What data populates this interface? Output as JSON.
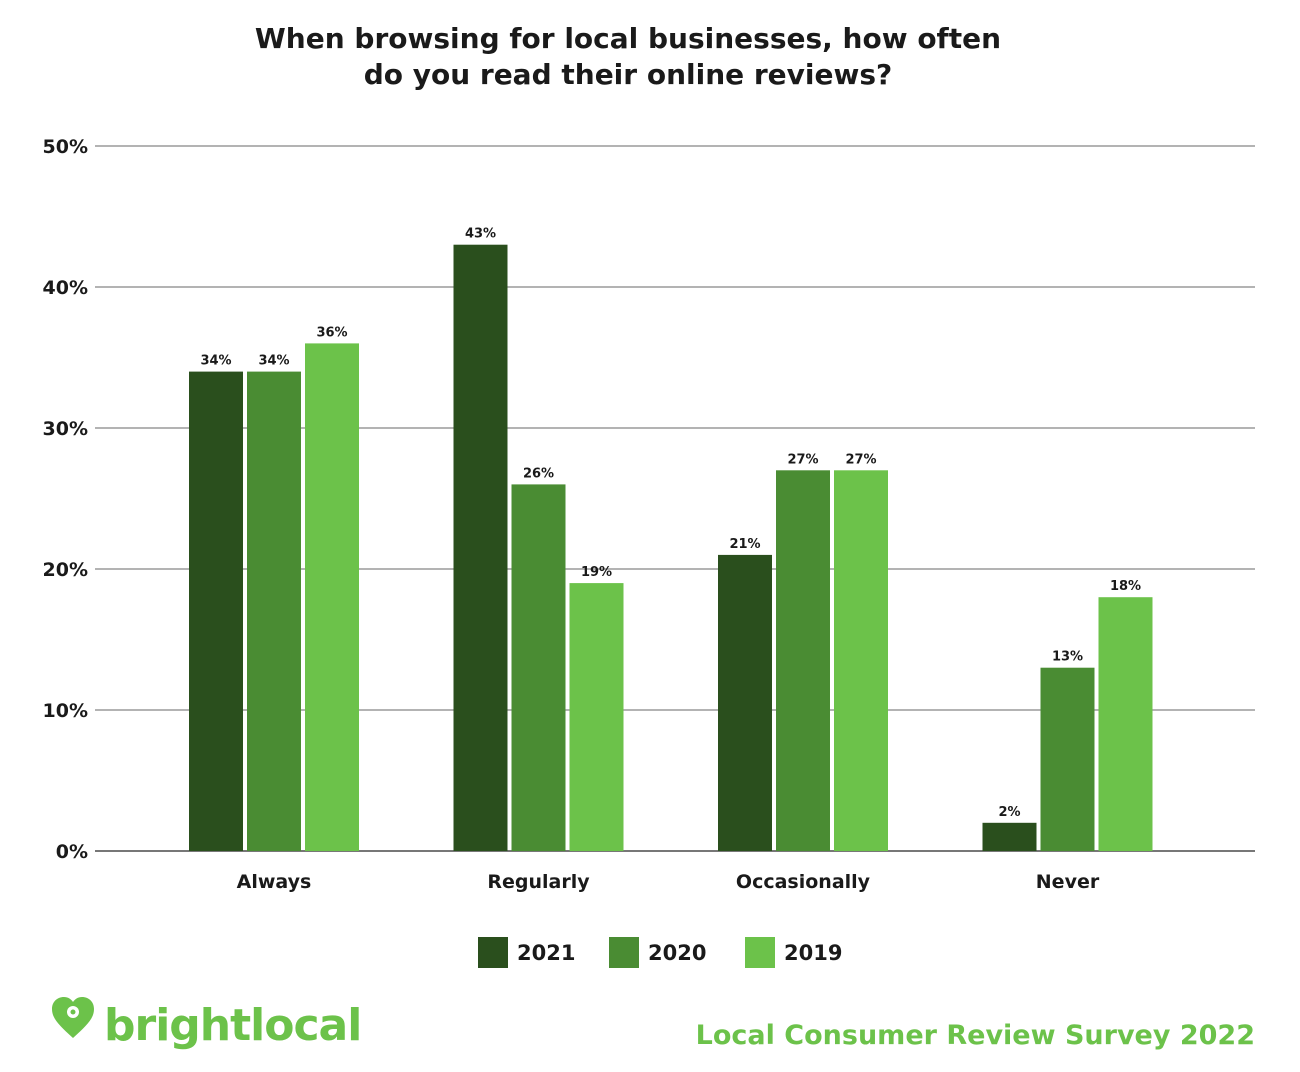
{
  "chart_data": {
    "type": "bar",
    "title_lines": [
      "When browsing for local businesses, how often",
      "do you read their online reviews?"
    ],
    "categories": [
      "Always",
      "Regularly",
      "Occasionally",
      "Never"
    ],
    "series": [
      {
        "name": "2021",
        "values": [
          34,
          43,
          21,
          2
        ],
        "labels": [
          "34%",
          "43%",
          "21%",
          "2%"
        ],
        "color": "#2a4f1d"
      },
      {
        "name": "2020",
        "values": [
          34,
          26,
          27,
          13
        ],
        "labels": [
          "34%",
          "26%",
          "27%",
          "13%"
        ],
        "color": "#4a8c33"
      },
      {
        "name": "2019",
        "values": [
          36,
          19,
          27,
          18
        ],
        "labels": [
          "36%",
          "19%",
          "27%",
          "18%"
        ],
        "color": "#6cc24a"
      }
    ],
    "yticks": [
      0,
      10,
      20,
      30,
      40,
      50
    ],
    "ytick_labels": [
      "0%",
      "10%",
      "20%",
      "30%",
      "40%",
      "50%"
    ],
    "ylim": [
      0,
      50
    ],
    "grid": true,
    "legend_position": "bottom-center"
  },
  "footer": {
    "brand": "brightlocal",
    "survey": "Local Consumer Review Survey 2022",
    "brand_color": "#6cc24a",
    "survey_color": "#6cc24a",
    "logo_icon": "heart-pin-icon"
  }
}
